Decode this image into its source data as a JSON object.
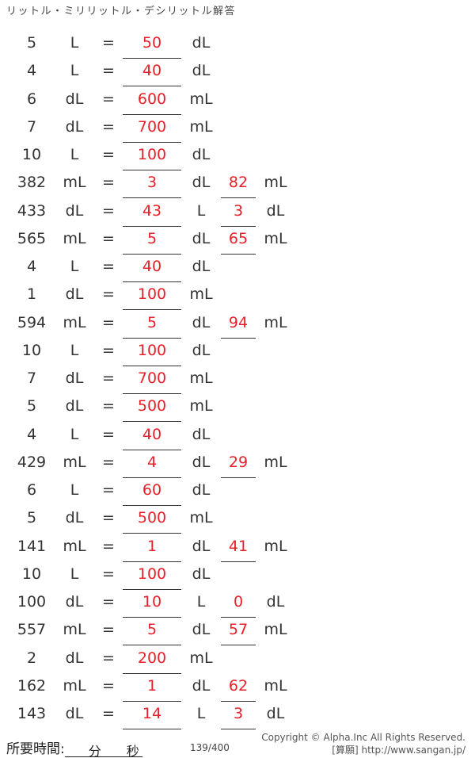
{
  "title": "リットル・ミリリットル・デシリットル解答",
  "rows": [
    {
      "q": "5",
      "u1": "L",
      "a1": "50",
      "u2": "dL",
      "a2": "",
      "u3": ""
    },
    {
      "q": "4",
      "u1": "L",
      "a1": "40",
      "u2": "dL",
      "a2": "",
      "u3": ""
    },
    {
      "q": "6",
      "u1": "dL",
      "a1": "600",
      "u2": "mL",
      "a2": "",
      "u3": ""
    },
    {
      "q": "7",
      "u1": "dL",
      "a1": "700",
      "u2": "mL",
      "a2": "",
      "u3": ""
    },
    {
      "q": "10",
      "u1": "L",
      "a1": "100",
      "u2": "dL",
      "a2": "",
      "u3": ""
    },
    {
      "q": "382",
      "u1": "mL",
      "a1": "3",
      "u2": "dL",
      "a2": "82",
      "u3": "mL"
    },
    {
      "q": "433",
      "u1": "dL",
      "a1": "43",
      "u2": "L",
      "a2": "3",
      "u3": "dL"
    },
    {
      "q": "565",
      "u1": "mL",
      "a1": "5",
      "u2": "dL",
      "a2": "65",
      "u3": "mL"
    },
    {
      "q": "4",
      "u1": "L",
      "a1": "40",
      "u2": "dL",
      "a2": "",
      "u3": ""
    },
    {
      "q": "1",
      "u1": "dL",
      "a1": "100",
      "u2": "mL",
      "a2": "",
      "u3": ""
    },
    {
      "q": "594",
      "u1": "mL",
      "a1": "5",
      "u2": "dL",
      "a2": "94",
      "u3": "mL"
    },
    {
      "q": "10",
      "u1": "L",
      "a1": "100",
      "u2": "dL",
      "a2": "",
      "u3": ""
    },
    {
      "q": "7",
      "u1": "dL",
      "a1": "700",
      "u2": "mL",
      "a2": "",
      "u3": ""
    },
    {
      "q": "5",
      "u1": "dL",
      "a1": "500",
      "u2": "mL",
      "a2": "",
      "u3": ""
    },
    {
      "q": "4",
      "u1": "L",
      "a1": "40",
      "u2": "dL",
      "a2": "",
      "u3": ""
    },
    {
      "q": "429",
      "u1": "mL",
      "a1": "4",
      "u2": "dL",
      "a2": "29",
      "u3": "mL"
    },
    {
      "q": "6",
      "u1": "L",
      "a1": "60",
      "u2": "dL",
      "a2": "",
      "u3": ""
    },
    {
      "q": "5",
      "u1": "dL",
      "a1": "500",
      "u2": "mL",
      "a2": "",
      "u3": ""
    },
    {
      "q": "141",
      "u1": "mL",
      "a1": "1",
      "u2": "dL",
      "a2": "41",
      "u3": "mL"
    },
    {
      "q": "10",
      "u1": "L",
      "a1": "100",
      "u2": "dL",
      "a2": "",
      "u3": ""
    },
    {
      "q": "100",
      "u1": "dL",
      "a1": "10",
      "u2": "L",
      "a2": "0",
      "u3": "dL"
    },
    {
      "q": "557",
      "u1": "mL",
      "a1": "5",
      "u2": "dL",
      "a2": "57",
      "u3": "mL"
    },
    {
      "q": "2",
      "u1": "dL",
      "a1": "200",
      "u2": "mL",
      "a2": "",
      "u3": ""
    },
    {
      "q": "162",
      "u1": "mL",
      "a1": "1",
      "u2": "dL",
      "a2": "62",
      "u3": "mL"
    },
    {
      "q": "143",
      "u1": "dL",
      "a1": "14",
      "u2": "L",
      "a2": "3",
      "u3": "dL"
    }
  ],
  "equals": "=",
  "footer": {
    "time_label": "所要時間:",
    "minutes": "分",
    "seconds": "秒",
    "page": "139/400",
    "copyright": "Copyright © Alpha.Inc All Rights Reserved.",
    "site": "[算願] http://www.sangan.jp/"
  },
  "colors": {
    "answer": "#e8202a"
  }
}
